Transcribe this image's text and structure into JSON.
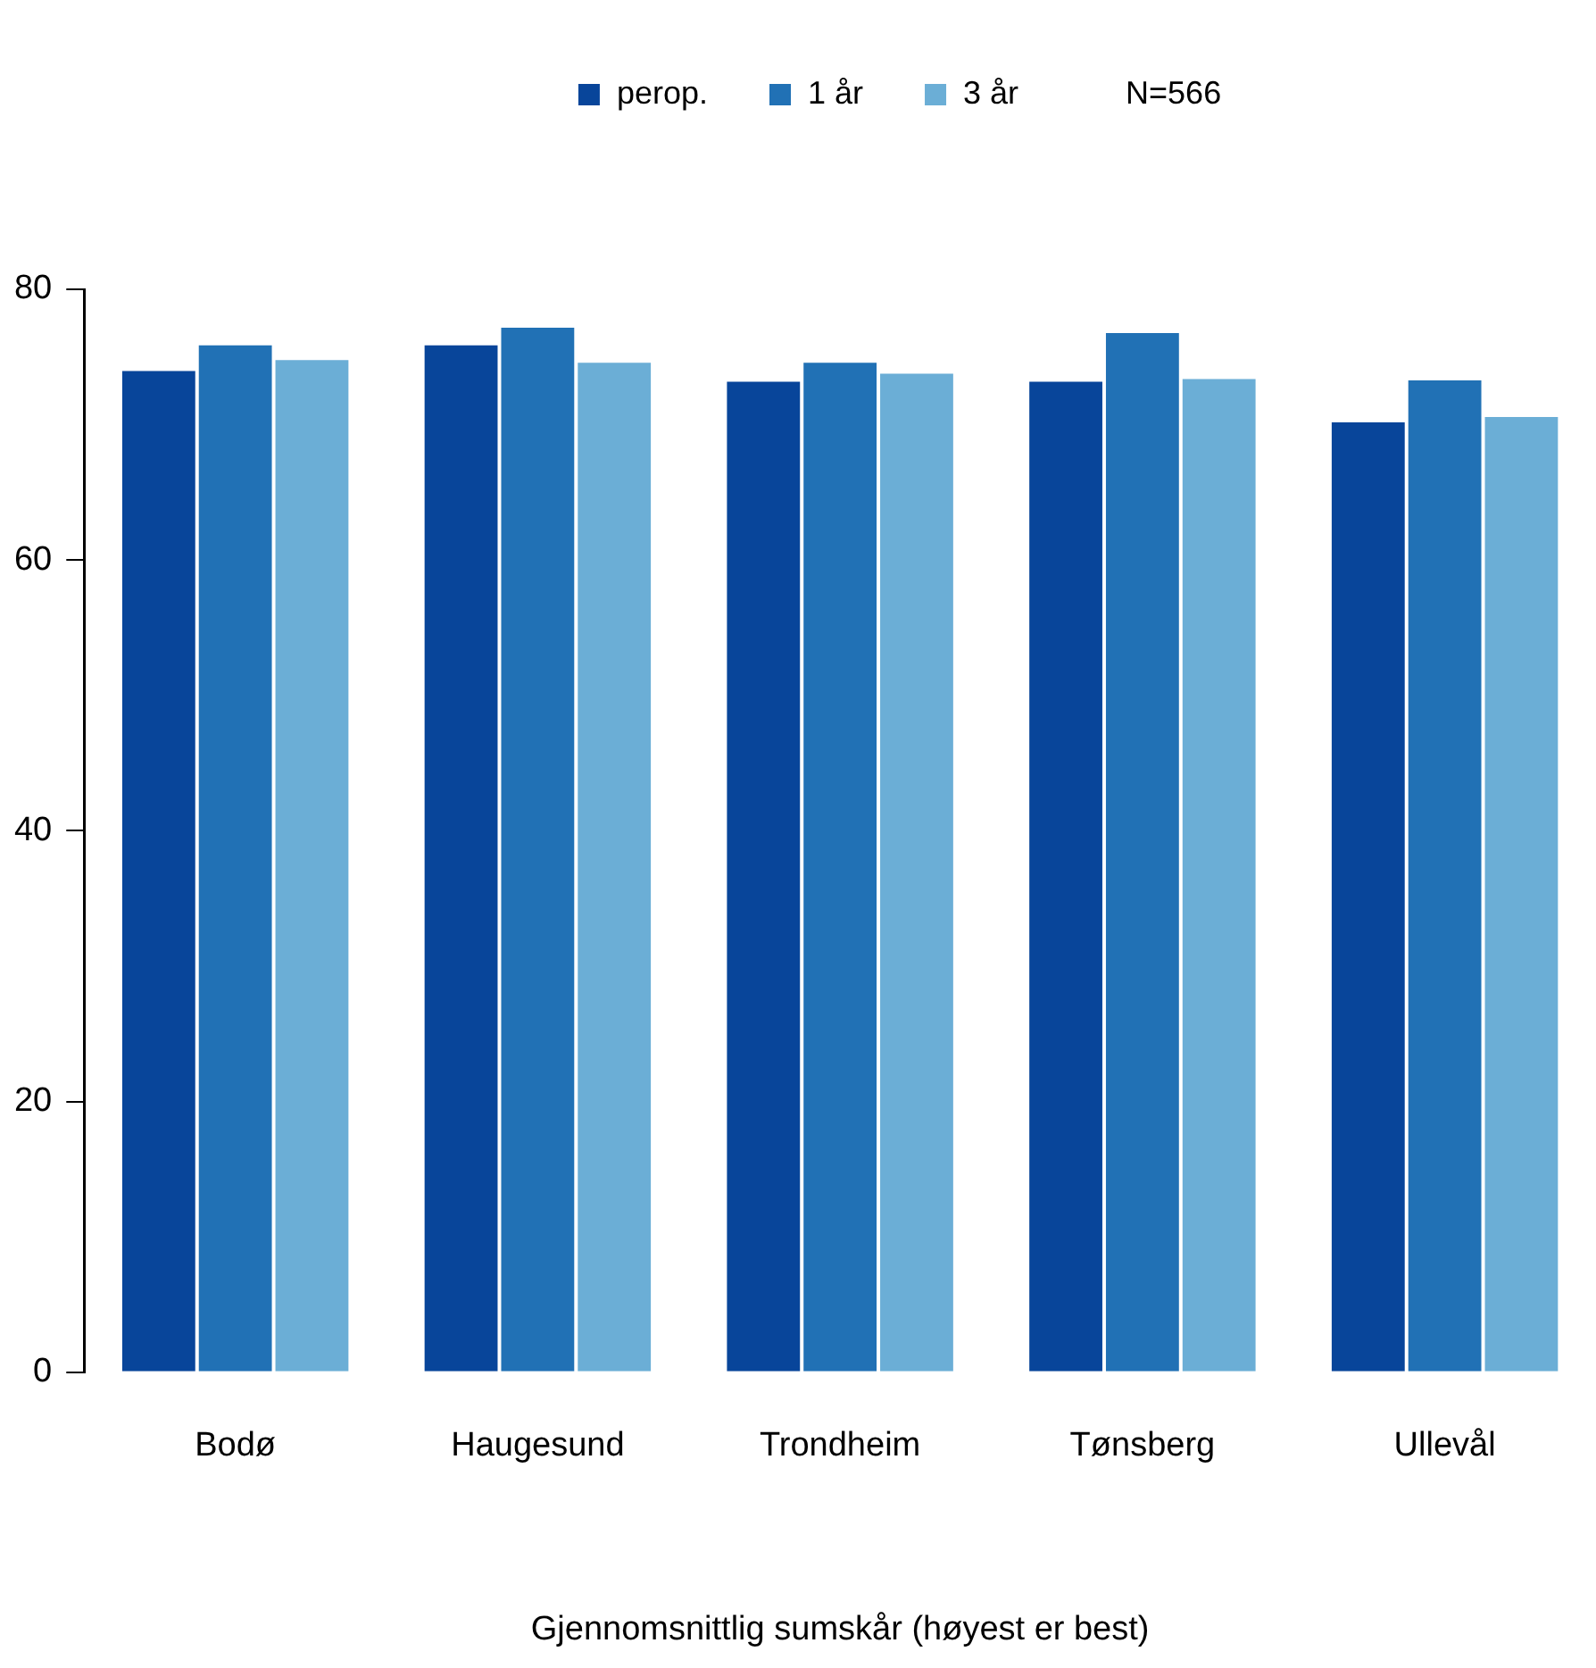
{
  "chart_data": {
    "type": "bar",
    "xlabel": "Gjennomsnittlig sumskår (høyest er best)",
    "categories": [
      "Bodø",
      "Haugesund",
      "Trondheim",
      "Tønsberg",
      "Ullevål"
    ],
    "series": [
      {
        "name": "perop.",
        "color": "#08459a",
        "values": [
          74.1,
          76.0,
          73.3,
          73.3,
          70.3
        ]
      },
      {
        "name": "1 år",
        "color": "#2171b5",
        "values": [
          76.0,
          77.3,
          74.7,
          76.9,
          73.4
        ]
      },
      {
        "name": "3 år",
        "color": "#6baed6",
        "values": [
          74.9,
          74.7,
          73.9,
          73.5,
          70.7
        ]
      }
    ],
    "ylim": [
      0,
      80
    ],
    "yticks": [
      0,
      20,
      40,
      60,
      80
    ],
    "grid": false,
    "legend": "top",
    "annotations": [
      "N=566"
    ]
  }
}
